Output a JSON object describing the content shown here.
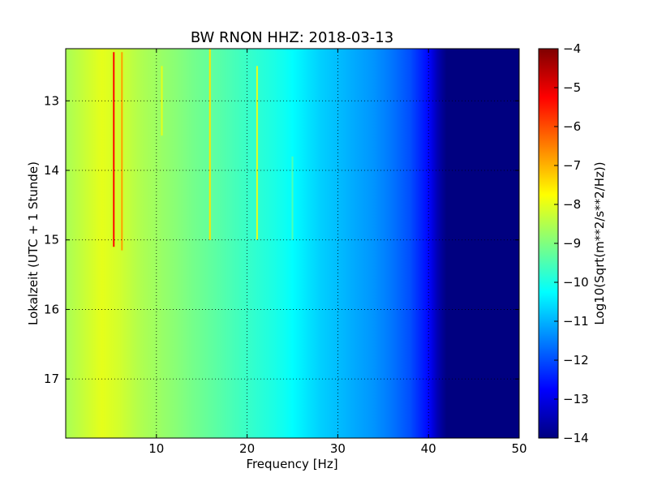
{
  "chart_data": {
    "type": "heatmap",
    "title": "BW RNON HHZ: 2018-03-13",
    "xlabel": "Frequency [Hz]",
    "ylabel": "Lokalzeit (UTC + 1 Stunde)",
    "xlim": [
      0,
      50
    ],
    "ylim": [
      12.25,
      17.85
    ],
    "x_ticks": [
      10,
      20,
      30,
      40,
      50
    ],
    "y_ticks": [
      13,
      14,
      15,
      16,
      17
    ],
    "grid": true,
    "colorbar": {
      "label": "Log10(Sqrt(m**2/s**2/Hz))",
      "range": [
        -14,
        -4
      ],
      "ticks": [
        -14,
        -13,
        -12,
        -11,
        -10,
        -9,
        -8,
        -7,
        -6,
        -5,
        -4
      ],
      "colormap": "jet"
    },
    "frequency_profile": [
      {
        "f": 0,
        "v": -8.6
      },
      {
        "f": 2,
        "v": -8.3
      },
      {
        "f": 4,
        "v": -8.0
      },
      {
        "f": 6,
        "v": -8.2
      },
      {
        "f": 8,
        "v": -8.5
      },
      {
        "f": 10,
        "v": -8.7
      },
      {
        "f": 12,
        "v": -8.9
      },
      {
        "f": 14,
        "v": -9.1
      },
      {
        "f": 16,
        "v": -9.3
      },
      {
        "f": 18,
        "v": -9.5
      },
      {
        "f": 20,
        "v": -9.7
      },
      {
        "f": 22,
        "v": -9.9
      },
      {
        "f": 24,
        "v": -10.1
      },
      {
        "f": 26,
        "v": -10.4
      },
      {
        "f": 28,
        "v": -10.7
      },
      {
        "f": 30,
        "v": -10.9
      },
      {
        "f": 32,
        "v": -11.1
      },
      {
        "f": 34,
        "v": -11.3
      },
      {
        "f": 36,
        "v": -11.6
      },
      {
        "f": 38,
        "v": -12.0
      },
      {
        "f": 40,
        "v": -12.7
      },
      {
        "f": 41,
        "v": -13.5
      },
      {
        "f": 42,
        "v": -14.0
      },
      {
        "f": 50,
        "v": -14.0
      }
    ],
    "spectral_lines": [
      {
        "f": 5.3,
        "v": -5.3,
        "t_start": 12.3,
        "t_end": 15.1
      },
      {
        "f": 6.2,
        "v": -6.8,
        "t_start": 12.3,
        "t_end": 15.15
      },
      {
        "f": 10.6,
        "v": -8.0,
        "t_start": 12.5,
        "t_end": 13.5
      },
      {
        "f": 15.9,
        "v": -7.5,
        "t_start": 12.25,
        "t_end": 15.0
      },
      {
        "f": 21.1,
        "v": -8.0,
        "t_start": 12.5,
        "t_end": 15.0
      },
      {
        "f": 25.0,
        "v": -9.5,
        "t_start": 13.8,
        "t_end": 15.0
      }
    ]
  }
}
